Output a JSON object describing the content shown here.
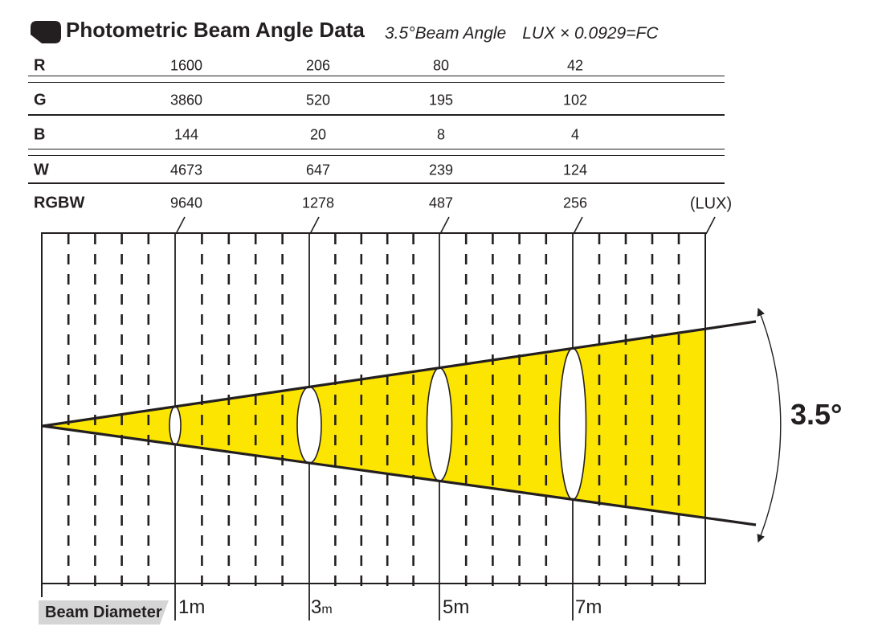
{
  "header": {
    "icon": "bullet-icon",
    "title": "Photometric Beam Angle Data",
    "subtitle_angle": "3.5°Beam Angle",
    "subtitle_formula": "LUX × 0.0929=FC"
  },
  "table": {
    "unit_label": "(LUX)",
    "rows": [
      {
        "label": "R",
        "values": [
          "1600",
          "206",
          "80",
          "42"
        ]
      },
      {
        "label": "G",
        "values": [
          "3860",
          "520",
          "195",
          "102"
        ]
      },
      {
        "label": "B",
        "values": [
          "144",
          "20",
          "8",
          "4"
        ]
      },
      {
        "label": "W",
        "values": [
          "4673",
          "647",
          "239",
          "124"
        ]
      },
      {
        "label": "RGBW",
        "values": [
          "9640",
          "1278",
          "487",
          "256"
        ]
      }
    ]
  },
  "diagram": {
    "beam_angle_label": "3.5°",
    "beam_diameter_label": "Beam Diameter",
    "distance_labels": [
      {
        "num": "1",
        "unit": "m"
      },
      {
        "num": "3",
        "unit": "m"
      },
      {
        "num": "5",
        "unit": "m"
      },
      {
        "num": "7",
        "unit": "m"
      }
    ],
    "beam_color": "#fce500",
    "line_color": "#231f20",
    "label_bg_color": "#d5d5d5"
  },
  "chart_data": {
    "type": "table",
    "title": "Photometric Beam Angle Data",
    "beam_angle_deg": 3.5,
    "conversion": "LUX × 0.0929=FC",
    "unit": "LUX",
    "distances_m": [
      1,
      3,
      5,
      7
    ],
    "series": [
      {
        "name": "R",
        "values": [
          1600,
          206,
          80,
          42
        ]
      },
      {
        "name": "G",
        "values": [
          3860,
          520,
          195,
          102
        ]
      },
      {
        "name": "B",
        "values": [
          144,
          20,
          8,
          4
        ]
      },
      {
        "name": "W",
        "values": [
          4673,
          647,
          239,
          124
        ]
      },
      {
        "name": "RGBW",
        "values": [
          9640,
          1278,
          487,
          256
        ]
      }
    ]
  }
}
